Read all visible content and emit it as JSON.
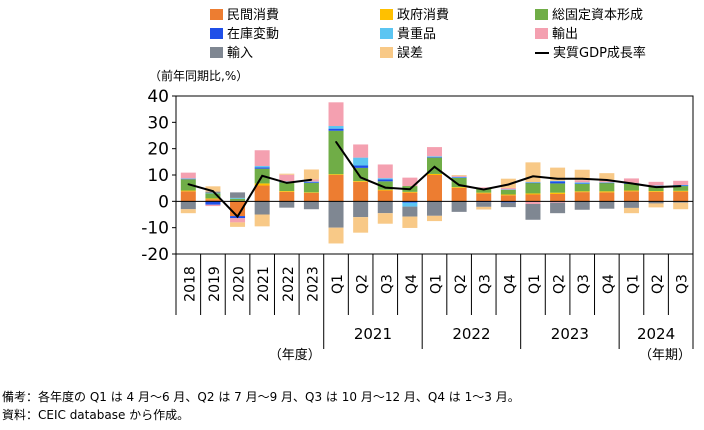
{
  "chart_data": {
    "type": "bar",
    "stacked": true,
    "ylabel": "（前年同期比,%）",
    "ylim": [
      -20,
      40
    ],
    "yticks": [
      -20,
      -10,
      0,
      10,
      20,
      30,
      40
    ],
    "legend_position": "top",
    "series": [
      {
        "key": "private",
        "name": "民間消費",
        "color": "#ED7D31",
        "values": [
          3.8,
          0.8,
          -5.6,
          6.0,
          3.6,
          3.2,
          10.0,
          7.4,
          4.1,
          3.3,
          10.0,
          5.1,
          3.0,
          2.3,
          2.6,
          2.8,
          3.5,
          3.4,
          3.8,
          3.6,
          3.7
        ]
      },
      {
        "key": "government",
        "name": "政府消費",
        "color": "#FFC000",
        "values": [
          0.3,
          0.3,
          0.2,
          0.8,
          0.3,
          0.2,
          0.3,
          0.3,
          0.3,
          0.3,
          0.4,
          0.3,
          0.3,
          0.3,
          0.4,
          0.5,
          0.3,
          0.4,
          0.3,
          0.3,
          0.3
        ]
      },
      {
        "key": "gfcf",
        "name": "総固定資本形成",
        "color": "#70AD47",
        "values": [
          4.3,
          2.0,
          0.8,
          5.6,
          3.4,
          3.6,
          16.5,
          5.0,
          3.2,
          2.2,
          6.2,
          3.5,
          1.5,
          1.8,
          4.0,
          3.5,
          2.8,
          3.2,
          2.5,
          1.8,
          1.8
        ]
      },
      {
        "key": "inventory",
        "name": "在庫変動",
        "color": "#1F4FE8",
        "values": [
          0.2,
          -1.3,
          -0.8,
          0.5,
          0.1,
          0.3,
          0.8,
          0.9,
          0.7,
          -0.5,
          0.2,
          0.2,
          -0.3,
          -0.4,
          0.1,
          0.8,
          0.2,
          0.1,
          0.2,
          0.2,
          0.3
        ]
      },
      {
        "key": "valuables",
        "name": "貴重品",
        "color": "#5BC5F2",
        "values": [
          0.1,
          0.1,
          0.3,
          0.5,
          0.2,
          0.2,
          1.0,
          3.0,
          0.5,
          -1.5,
          0.3,
          0.2,
          0.1,
          0.1,
          0.2,
          0.2,
          0.4,
          0.1,
          0.1,
          0.1,
          0.1
        ]
      },
      {
        "key": "exports",
        "name": "輸出",
        "color": "#F4A0B0",
        "values": [
          2.2,
          -0.5,
          -1.6,
          6.0,
          2.5,
          0.8,
          9.0,
          5.0,
          5.2,
          3.2,
          3.5,
          0.4,
          0.4,
          0.6,
          -1.0,
          -0.5,
          0.8,
          0.5,
          1.8,
          1.4,
          1.6
        ]
      },
      {
        "key": "imports",
        "name": "輸入",
        "color": "#7F8792",
        "values": [
          -3.0,
          0.5,
          2.1,
          -5.0,
          -2.4,
          -3.0,
          -10.0,
          -6.0,
          -4.5,
          -3.8,
          -5.5,
          -4.0,
          -1.8,
          -1.8,
          -6.0,
          -4.0,
          -3.2,
          -2.8,
          -2.5,
          -0.8,
          -0.5
        ]
      },
      {
        "key": "discrepancy",
        "name": "誤差",
        "color": "#F8C987",
        "values": [
          -1.5,
          2.0,
          -1.7,
          -4.5,
          0.4,
          3.8,
          -6.0,
          -5.9,
          -4.0,
          -4.3,
          -2.0,
          0.3,
          -1.0,
          3.5,
          7.5,
          5.0,
          4.0,
          3.0,
          -2.0,
          -1.5,
          -2.5
        ]
      }
    ],
    "line": {
      "name": "実質GDP成長率",
      "color": "#000000",
      "values": [
        6.5,
        3.9,
        -5.8,
        9.7,
        7.0,
        8.2,
        22.6,
        9.1,
        5.2,
        4.6,
        13.1,
        6.2,
        4.5,
        6.4,
        9.5,
        8.6,
        8.6,
        8.1,
        6.8,
        5.4,
        5.8
      ]
    },
    "annual_labels": [
      "2018",
      "2019",
      "2020",
      "2021",
      "2022",
      "2023"
    ],
    "quarter_labels": [
      "Q1",
      "Q2",
      "Q3",
      "Q4",
      "Q1",
      "Q2",
      "Q3",
      "Q4",
      "Q1",
      "Q2",
      "Q3",
      "Q4",
      "Q1",
      "Q2",
      "Q3"
    ],
    "year_groups": [
      {
        "label": "2021",
        "start": 6,
        "count": 4
      },
      {
        "label": "2022",
        "start": 10,
        "count": 4
      },
      {
        "label": "2023",
        "start": 14,
        "count": 4
      },
      {
        "label": "2024",
        "start": 18,
        "count": 3
      }
    ],
    "annual_group_label": "（年度）",
    "quarter_group_label": "（年期）"
  },
  "notes": {
    "note1": "備考：各年度の Q1 は 4 月～6 月、Q2 は 7 月～9 月、Q3 は 10 月～12 月、Q4 は 1～3 月。",
    "note2": "資料：CEIC database から作成。"
  }
}
